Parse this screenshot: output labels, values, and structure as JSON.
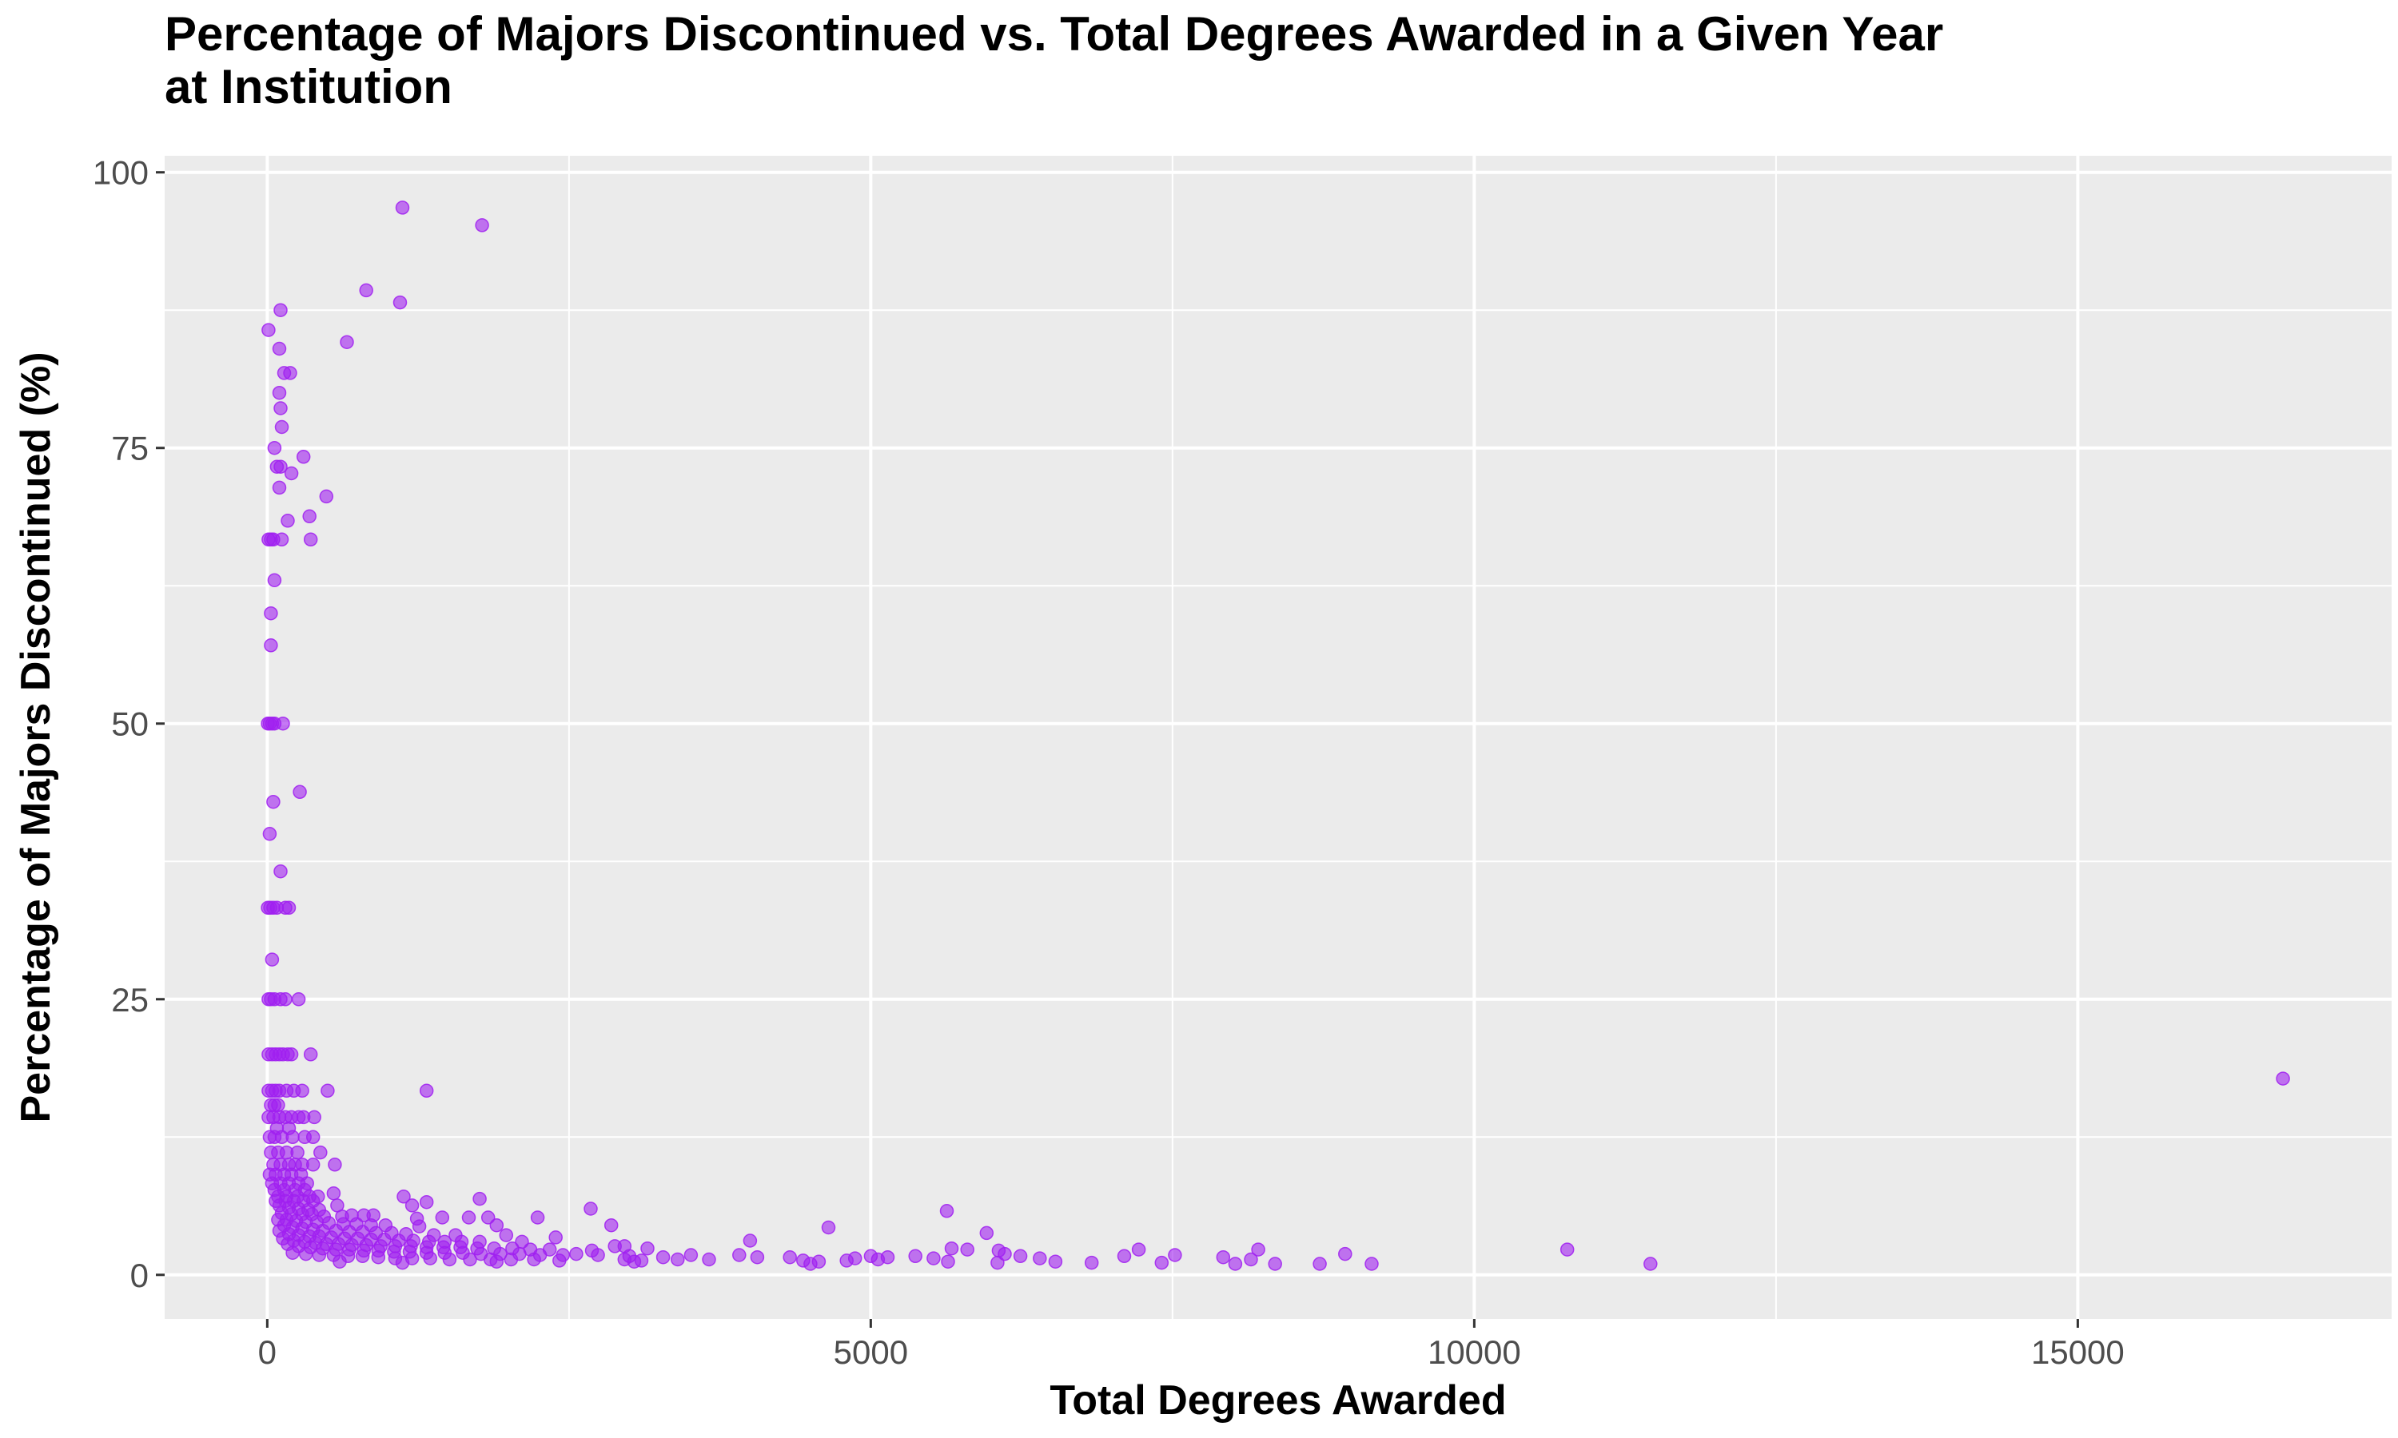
{
  "chart_data": {
    "type": "scatter",
    "title_lines": [
      "Percentage of Majors Discontinued vs. Total Degrees Awarded in a Given Year",
      "at Institution"
    ],
    "xlabel": "Total Degrees Awarded",
    "ylabel": "Percentage of Majors Discontinued (%)",
    "xlim": [
      -850,
      17600
    ],
    "ylim": [
      -4,
      101.5
    ],
    "x_ticks": [
      0,
      5000,
      10000,
      15000
    ],
    "x_tick_labels": [
      "0",
      "5000",
      "10000",
      "15000"
    ],
    "x_minor_ticks": [
      2500,
      7500,
      12500
    ],
    "y_ticks": [
      0,
      25,
      50,
      75,
      100
    ],
    "y_tick_labels": [
      "0",
      "25",
      "50",
      "75",
      "100"
    ],
    "y_minor_ticks": [
      12.5,
      37.5,
      62.5,
      87.5
    ],
    "grid": true,
    "point_color": "#A020F0",
    "panel_background": "#EBEBEB",
    "grid_color": "#FFFFFF",
    "series": [
      {
        "points": [
          [
            1120,
            96.8
          ],
          [
            1780,
            95.2
          ],
          [
            820,
            89.3
          ],
          [
            1100,
            88.2
          ],
          [
            110,
            87.5
          ],
          [
            10,
            85.7
          ],
          [
            660,
            84.6
          ],
          [
            100,
            84.0
          ],
          [
            140,
            81.8
          ],
          [
            190,
            81.8
          ],
          [
            100,
            80.0
          ],
          [
            110,
            78.6
          ],
          [
            120,
            76.9
          ],
          [
            60,
            75.0
          ],
          [
            300,
            74.2
          ],
          [
            80,
            73.3
          ],
          [
            110,
            73.3
          ],
          [
            200,
            72.7
          ],
          [
            100,
            71.4
          ],
          [
            490,
            70.6
          ],
          [
            350,
            68.8
          ],
          [
            170,
            68.4
          ],
          [
            10,
            66.7
          ],
          [
            30,
            66.7
          ],
          [
            50,
            66.7
          ],
          [
            120,
            66.7
          ],
          [
            360,
            66.7
          ],
          [
            60,
            63.0
          ],
          [
            30,
            60.0
          ],
          [
            30,
            57.1
          ],
          [
            5,
            50.0
          ],
          [
            20,
            50.0
          ],
          [
            40,
            50.0
          ],
          [
            60,
            50.0
          ],
          [
            130,
            50.0
          ],
          [
            270,
            43.8
          ],
          [
            50,
            42.9
          ],
          [
            20,
            40.0
          ],
          [
            110,
            36.6
          ],
          [
            5,
            33.3
          ],
          [
            25,
            33.3
          ],
          [
            50,
            33.3
          ],
          [
            80,
            33.3
          ],
          [
            150,
            33.3
          ],
          [
            180,
            33.3
          ],
          [
            40,
            28.6
          ],
          [
            10,
            25.0
          ],
          [
            30,
            25.0
          ],
          [
            60,
            25.0
          ],
          [
            110,
            25.0
          ],
          [
            150,
            25.0
          ],
          [
            260,
            25.0
          ],
          [
            10,
            20.0
          ],
          [
            40,
            20.0
          ],
          [
            70,
            20.0
          ],
          [
            100,
            20.0
          ],
          [
            130,
            20.0
          ],
          [
            170,
            20.0
          ],
          [
            200,
            20.0
          ],
          [
            360,
            20.0
          ],
          [
            16700,
            17.8
          ],
          [
            10,
            16.7
          ],
          [
            40,
            16.7
          ],
          [
            70,
            16.7
          ],
          [
            100,
            16.7
          ],
          [
            160,
            16.7
          ],
          [
            220,
            16.7
          ],
          [
            290,
            16.7
          ],
          [
            500,
            16.7
          ],
          [
            1320,
            16.7
          ],
          [
            30,
            15.4
          ],
          [
            60,
            15.4
          ],
          [
            90,
            15.4
          ],
          [
            10,
            14.3
          ],
          [
            50,
            14.3
          ],
          [
            100,
            14.3
          ],
          [
            150,
            14.3
          ],
          [
            200,
            14.3
          ],
          [
            260,
            14.3
          ],
          [
            300,
            14.3
          ],
          [
            390,
            14.3
          ],
          [
            80,
            13.3
          ],
          [
            180,
            13.3
          ],
          [
            20,
            12.5
          ],
          [
            60,
            12.5
          ],
          [
            120,
            12.5
          ],
          [
            210,
            12.5
          ],
          [
            310,
            12.5
          ],
          [
            380,
            12.5
          ],
          [
            30,
            11.1
          ],
          [
            90,
            11.1
          ],
          [
            160,
            11.1
          ],
          [
            250,
            11.1
          ],
          [
            440,
            11.1
          ],
          [
            50,
            10.0
          ],
          [
            110,
            10.0
          ],
          [
            180,
            10.0
          ],
          [
            230,
            10.0
          ],
          [
            290,
            10.0
          ],
          [
            380,
            10.0
          ],
          [
            560,
            10.0
          ],
          [
            20,
            9.1
          ],
          [
            70,
            9.1
          ],
          [
            140,
            9.1
          ],
          [
            200,
            9.1
          ],
          [
            280,
            9.1
          ],
          [
            40,
            8.3
          ],
          [
            110,
            8.3
          ],
          [
            180,
            8.3
          ],
          [
            260,
            8.3
          ],
          [
            330,
            8.3
          ],
          [
            60,
            7.7
          ],
          [
            140,
            7.7
          ],
          [
            230,
            7.7
          ],
          [
            310,
            7.7
          ],
          [
            90,
            7.1
          ],
          [
            160,
            7.1
          ],
          [
            250,
            7.1
          ],
          [
            350,
            7.1
          ],
          [
            420,
            7.1
          ],
          [
            550,
            7.4
          ],
          [
            1130,
            7.1
          ],
          [
            1760,
            6.9
          ],
          [
            1320,
            6.6
          ],
          [
            1200,
            6.3
          ],
          [
            2680,
            6.0
          ],
          [
            5630,
            5.8
          ],
          [
            70,
            6.7
          ],
          [
            150,
            6.7
          ],
          [
            220,
            6.7
          ],
          [
            300,
            6.7
          ],
          [
            380,
            6.7
          ],
          [
            580,
            6.3
          ],
          [
            100,
            6.3
          ],
          [
            180,
            6.1
          ],
          [
            260,
            6.0
          ],
          [
            340,
            5.9
          ],
          [
            430,
            5.9
          ],
          [
            120,
            5.6
          ],
          [
            200,
            5.5
          ],
          [
            290,
            5.5
          ],
          [
            370,
            5.5
          ],
          [
            470,
            5.3
          ],
          [
            620,
            5.3
          ],
          [
            700,
            5.4
          ],
          [
            800,
            5.4
          ],
          [
            880,
            5.4
          ],
          [
            1240,
            5.1
          ],
          [
            1450,
            5.2
          ],
          [
            1670,
            5.2
          ],
          [
            1830,
            5.2
          ],
          [
            2240,
            5.2
          ],
          [
            90,
            5.0
          ],
          [
            160,
            5.0
          ],
          [
            240,
            4.9
          ],
          [
            320,
            4.8
          ],
          [
            410,
            4.8
          ],
          [
            510,
            4.7
          ],
          [
            630,
            4.6
          ],
          [
            740,
            4.6
          ],
          [
            860,
            4.5
          ],
          [
            980,
            4.5
          ],
          [
            1260,
            4.4
          ],
          [
            1900,
            4.5
          ],
          [
            2850,
            4.5
          ],
          [
            4650,
            4.3
          ],
          [
            140,
            4.5
          ],
          [
            210,
            4.3
          ],
          [
            290,
            4.2
          ],
          [
            380,
            4.1
          ],
          [
            460,
            4.0
          ],
          [
            570,
            4.0
          ],
          [
            680,
            3.9
          ],
          [
            790,
            3.9
          ],
          [
            900,
            3.8
          ],
          [
            1030,
            3.8
          ],
          [
            1150,
            3.7
          ],
          [
            1380,
            3.6
          ],
          [
            1560,
            3.6
          ],
          [
            1980,
            3.6
          ],
          [
            2390,
            3.4
          ],
          [
            5960,
            3.8
          ],
          [
            100,
            4.0
          ],
          [
            180,
            3.7
          ],
          [
            260,
            3.6
          ],
          [
            350,
            3.5
          ],
          [
            430,
            3.5
          ],
          [
            530,
            3.4
          ],
          [
            640,
            3.3
          ],
          [
            750,
            3.3
          ],
          [
            860,
            3.2
          ],
          [
            970,
            3.2
          ],
          [
            1090,
            3.1
          ],
          [
            1210,
            3.1
          ],
          [
            1340,
            3.0
          ],
          [
            1470,
            3.0
          ],
          [
            1610,
            3.0
          ],
          [
            1760,
            3.0
          ],
          [
            2110,
            3.0
          ],
          [
            4000,
            3.1
          ],
          [
            130,
            3.3
          ],
          [
            220,
            3.1
          ],
          [
            310,
            3.0
          ],
          [
            400,
            2.9
          ],
          [
            490,
            2.8
          ],
          [
            590,
            2.8
          ],
          [
            700,
            2.7
          ],
          [
            820,
            2.7
          ],
          [
            940,
            2.6
          ],
          [
            1060,
            2.6
          ],
          [
            1190,
            2.6
          ],
          [
            1320,
            2.5
          ],
          [
            1460,
            2.5
          ],
          [
            1600,
            2.5
          ],
          [
            1740,
            2.4
          ],
          [
            1880,
            2.4
          ],
          [
            2030,
            2.4
          ],
          [
            2180,
            2.3
          ],
          [
            2340,
            2.3
          ],
          [
            2690,
            2.2
          ],
          [
            2880,
            2.6
          ],
          [
            2960,
            2.6
          ],
          [
            3150,
            2.4
          ],
          [
            5670,
            2.4
          ],
          [
            5800,
            2.3
          ],
          [
            6060,
            2.2
          ],
          [
            7220,
            2.3
          ],
          [
            8210,
            2.3
          ],
          [
            10770,
            2.3
          ],
          [
            170,
            2.8
          ],
          [
            260,
            2.6
          ],
          [
            360,
            2.5
          ],
          [
            460,
            2.4
          ],
          [
            570,
            2.3
          ],
          [
            680,
            2.3
          ],
          [
            800,
            2.2
          ],
          [
            920,
            2.2
          ],
          [
            1050,
            2.1
          ],
          [
            1180,
            2.1
          ],
          [
            1320,
            2.0
          ],
          [
            1470,
            2.0
          ],
          [
            1620,
            2.0
          ],
          [
            1770,
            1.9
          ],
          [
            1930,
            1.9
          ],
          [
            2090,
            1.9
          ],
          [
            2260,
            1.8
          ],
          [
            2450,
            1.8
          ],
          [
            2560,
            1.9
          ],
          [
            2740,
            1.8
          ],
          [
            3000,
            1.7
          ],
          [
            3280,
            1.6
          ],
          [
            3510,
            1.8
          ],
          [
            3910,
            1.8
          ],
          [
            4060,
            1.6
          ],
          [
            4330,
            1.6
          ],
          [
            4870,
            1.5
          ],
          [
            5000,
            1.7
          ],
          [
            5140,
            1.6
          ],
          [
            5370,
            1.7
          ],
          [
            5520,
            1.5
          ],
          [
            6110,
            1.9
          ],
          [
            6240,
            1.7
          ],
          [
            6400,
            1.5
          ],
          [
            7100,
            1.7
          ],
          [
            7520,
            1.8
          ],
          [
            7920,
            1.6
          ],
          [
            8150,
            1.4
          ],
          [
            8930,
            1.9
          ],
          [
            210,
            2.0
          ],
          [
            320,
            1.9
          ],
          [
            430,
            1.8
          ],
          [
            550,
            1.8
          ],
          [
            670,
            1.7
          ],
          [
            790,
            1.7
          ],
          [
            920,
            1.6
          ],
          [
            1060,
            1.5
          ],
          [
            1200,
            1.5
          ],
          [
            1350,
            1.5
          ],
          [
            1510,
            1.4
          ],
          [
            1680,
            1.4
          ],
          [
            1850,
            1.4
          ],
          [
            2020,
            1.4
          ],
          [
            2210,
            1.4
          ],
          [
            2420,
            1.3
          ],
          [
            2960,
            1.4
          ],
          [
            3100,
            1.3
          ],
          [
            3400,
            1.4
          ],
          [
            3660,
            1.4
          ],
          [
            4440,
            1.3
          ],
          [
            4570,
            1.2
          ],
          [
            4800,
            1.3
          ],
          [
            5060,
            1.4
          ],
          [
            5640,
            1.2
          ],
          [
            6050,
            1.1
          ],
          [
            6530,
            1.2
          ],
          [
            6830,
            1.1
          ],
          [
            7410,
            1.1
          ],
          [
            8020,
            1.0
          ],
          [
            8350,
            1.0
          ],
          [
            8720,
            1.0
          ],
          [
            9150,
            1.0
          ],
          [
            11460,
            1.0
          ],
          [
            600,
            1.2
          ],
          [
            1120,
            1.1
          ],
          [
            1900,
            1.2
          ],
          [
            3040,
            1.2
          ],
          [
            4500,
            1.0
          ]
        ]
      }
    ]
  }
}
